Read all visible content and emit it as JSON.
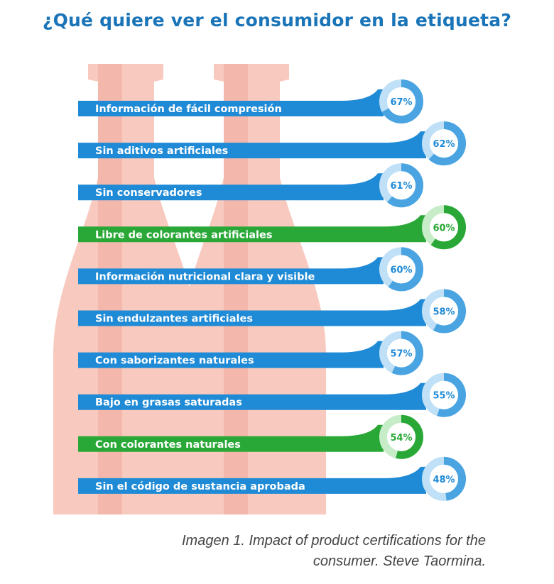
{
  "title": "¿Qué quiere ver el consumidor en la etiqueta?",
  "caption": {
    "line1": "Imagen 1.  Impact of product certifications for the",
    "line2": "consumer.  Steve Taormina."
  },
  "colors": {
    "blue": "#1f8ad6",
    "blue_ring": "#4aa4e2",
    "blue_light": "#bfe0f6",
    "green": "#2aa837",
    "green_light": "#c6ecc8",
    "bottle": "#f8c9be",
    "bottle_dark": "#eea89a",
    "title": "#1a74b8"
  },
  "chart_data": {
    "type": "bar",
    "title": "¿Qué quiere ver el consumidor en la etiqueta?",
    "categories": [
      "Información de fácil compresión",
      "Sin aditivos artificiales",
      "Sin conservadores",
      "Libre de colorantes artificiales",
      "Información nutricional clara y visible",
      "Sin endulzantes artificiales",
      "Con saborizantes naturales",
      "Bajo en grasas saturadas",
      "Con colorantes naturales",
      "Sin el código de sustancia aprobada"
    ],
    "values": [
      67,
      62,
      61,
      60,
      60,
      58,
      57,
      55,
      54,
      48
    ],
    "value_labels": [
      "67%",
      "62%",
      "61%",
      "60%",
      "60%",
      "58%",
      "57%",
      "55%",
      "54%",
      "48%"
    ],
    "colors": [
      "blue",
      "blue",
      "blue",
      "green",
      "blue",
      "blue",
      "blue",
      "blue",
      "green",
      "blue"
    ],
    "unit": "%"
  }
}
